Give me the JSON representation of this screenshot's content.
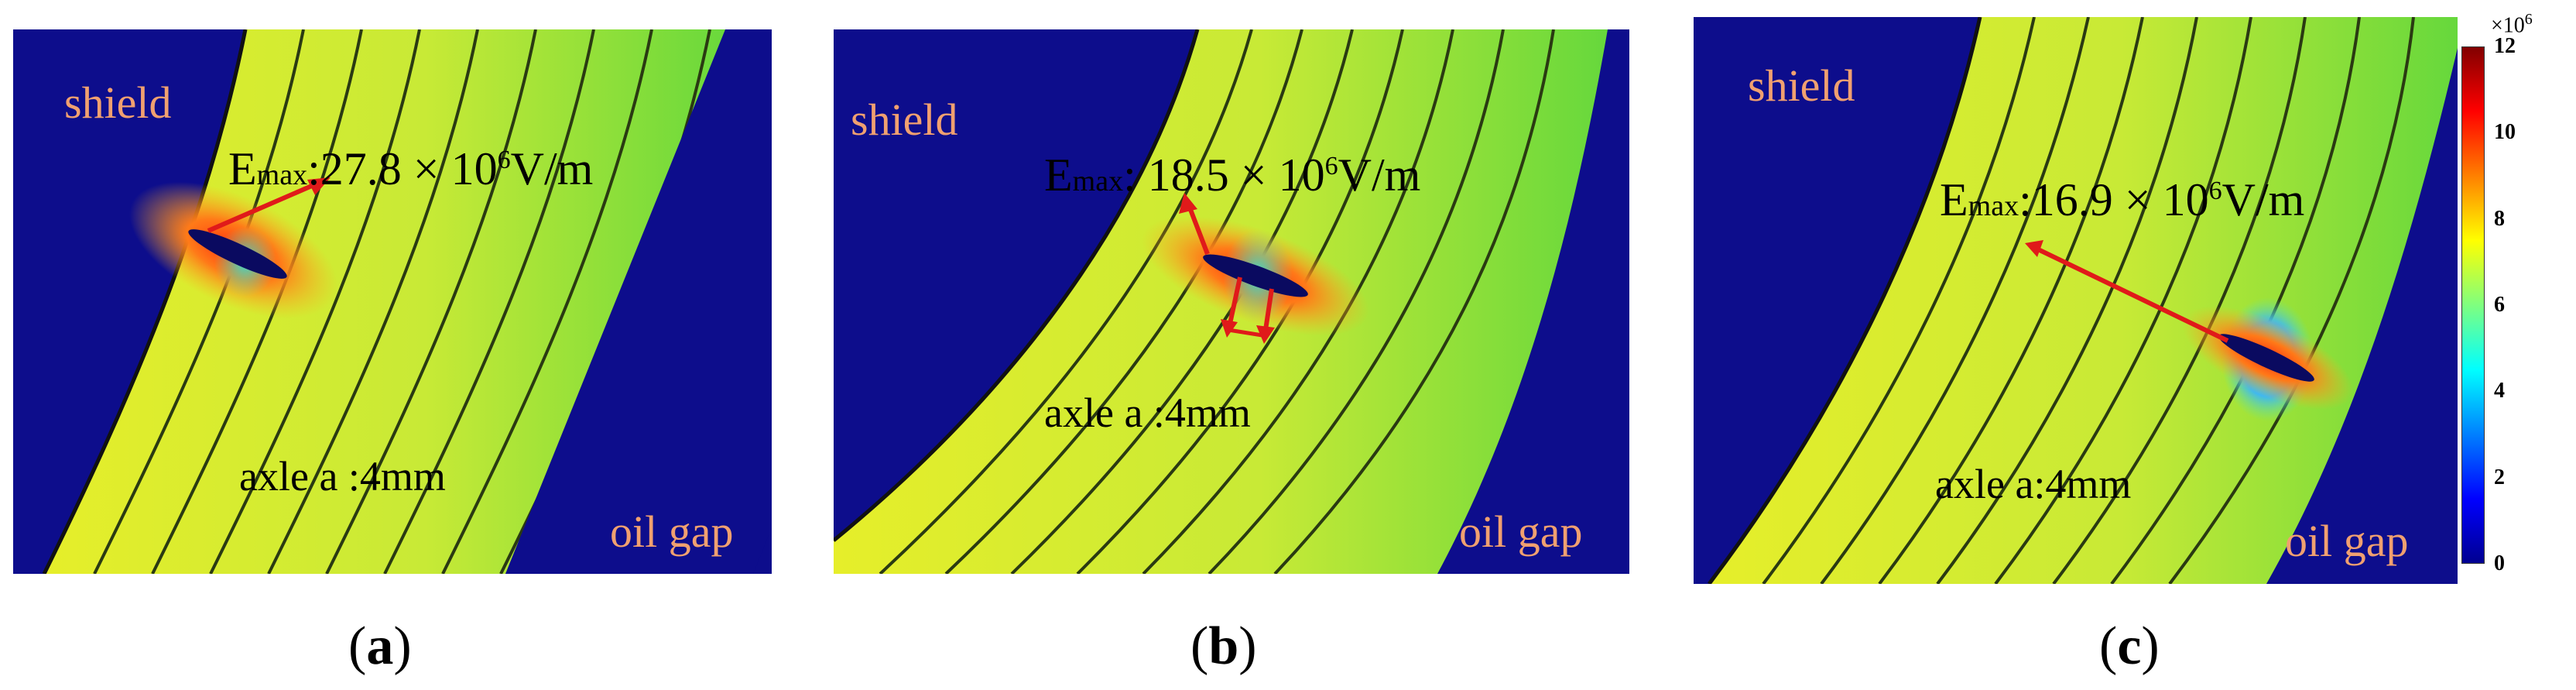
{
  "panels": [
    {
      "label_shield": "shield",
      "label_oil": "oil gap",
      "emax_prefix": "E",
      "emax_sub": "max",
      "emax_colon": ":",
      "emax_value": "27.8 × 10",
      "emax_exp": "6",
      "emax_unit": "V/m",
      "axle": "axle a :4mm",
      "caption_open": "(",
      "caption_letter": "a",
      "caption_close": ")"
    },
    {
      "label_shield": "shield",
      "label_oil": "oil gap",
      "emax_prefix": "E",
      "emax_sub": "max",
      "emax_colon": ":",
      "emax_value": " 18.5 × 10",
      "emax_exp": "6",
      "emax_unit": "V/m",
      "axle": "axle a :4mm",
      "caption_open": "(",
      "caption_letter": "b",
      "caption_close": ")"
    },
    {
      "label_shield": "shield",
      "label_oil": "oil gap",
      "emax_prefix": "E",
      "emax_sub": "max",
      "emax_colon": ":",
      "emax_value": "16.9 × 10",
      "emax_exp": "6",
      "emax_unit": "V/m",
      "axle": "axle a:4mm",
      "caption_open": "(",
      "caption_letter": "c",
      "caption_close": ")"
    }
  ],
  "colorbar": {
    "multiplier": "×10",
    "multiplier_exp": "6",
    "ticks": [
      "12",
      "10",
      "8",
      "6",
      "4",
      "2",
      "0"
    ]
  },
  "colors": {
    "background_blue": "#0d0d8c",
    "band_yellow": "#e2ec2e",
    "band_green": "#63d83c",
    "line_dark": "#2a3a12",
    "arrow_red": "#e01a1a",
    "label_orange": "#f0a070"
  }
}
